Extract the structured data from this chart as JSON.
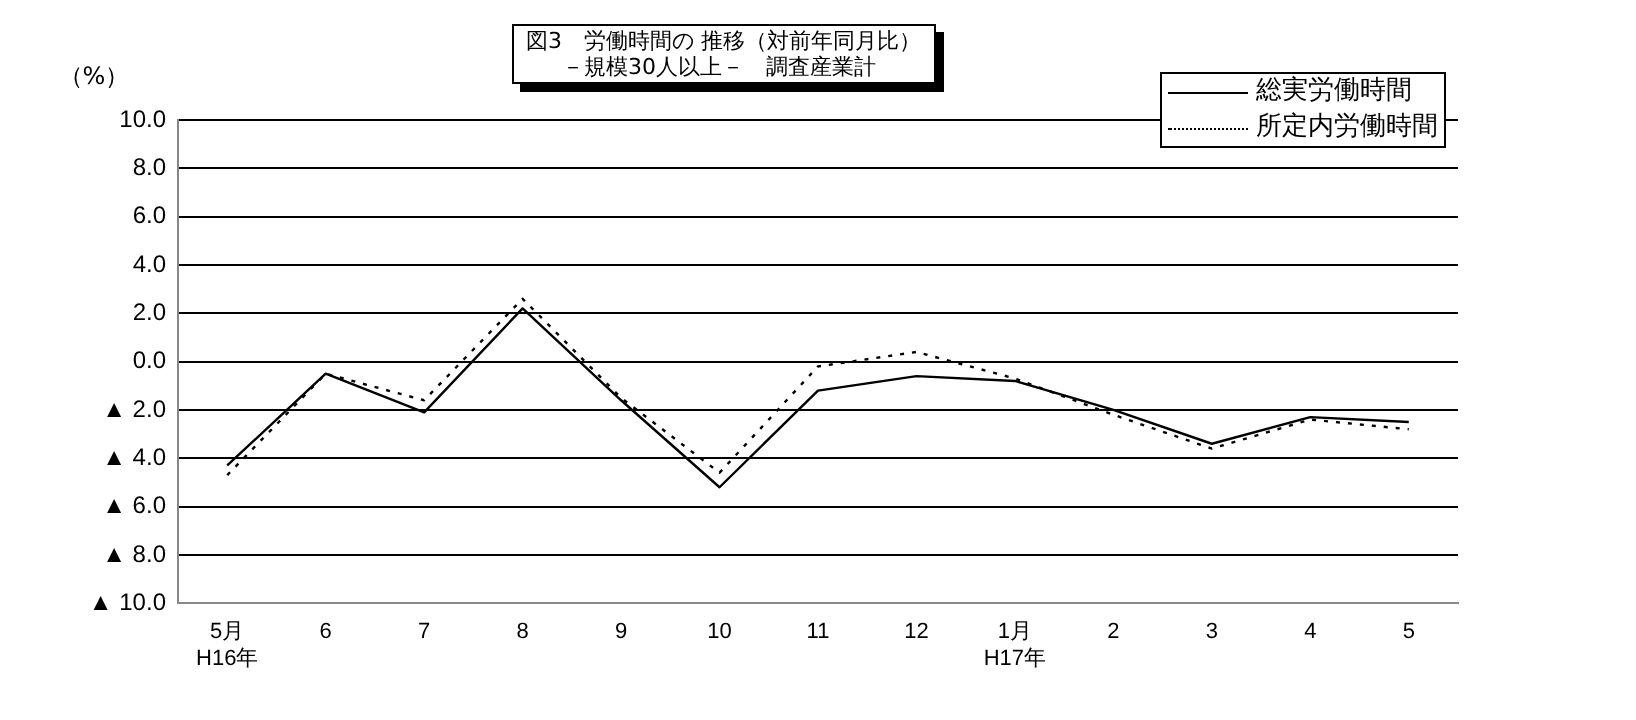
{
  "chart_data": {
    "type": "line",
    "title": "図3　労働時間の 推移（対前年同月比）",
    "subtitle": "－規模30人以上－　調査産業計",
    "ylabel": "（%）",
    "categories": [
      "5月\nH16年",
      "6",
      "7",
      "8",
      "9",
      "10",
      "11",
      "12",
      "1月\nH17年",
      "2",
      "3",
      "4",
      "5"
    ],
    "series": [
      {
        "name": "総実労働時間",
        "color": "#000000",
        "line_style": "solid",
        "values": [
          -4.3,
          -0.5,
          -2.1,
          2.2,
          -1.6,
          -5.2,
          -1.2,
          -0.6,
          -0.8,
          -2.0,
          -3.4,
          -2.3,
          -2.5
        ]
      },
      {
        "name": "所定内労働時間",
        "color": "#000000",
        "line_style": "dotted",
        "values": [
          -4.7,
          -0.5,
          -1.6,
          2.6,
          -1.5,
          -4.6,
          -0.2,
          0.4,
          -0.7,
          -2.2,
          -3.6,
          -2.4,
          -2.8
        ]
      }
    ],
    "ylim": [
      -10,
      10
    ],
    "yticks": [
      {
        "value": -10,
        "label": "▲ 10.0"
      },
      {
        "value": -8,
        "label": "▲ 8.0"
      },
      {
        "value": -6,
        "label": "▲ 6.0"
      },
      {
        "value": -4,
        "label": "▲ 4.0"
      },
      {
        "value": -2,
        "label": "▲ 2.0"
      },
      {
        "value": 0,
        "label": "0.0"
      },
      {
        "value": 2,
        "label": "2.0"
      },
      {
        "value": 4,
        "label": "4.0"
      },
      {
        "value": 6,
        "label": "6.0"
      },
      {
        "value": 8,
        "label": "8.0"
      },
      {
        "value": 10,
        "label": "10.0"
      }
    ],
    "grid": "y",
    "legend": "top right",
    "marker": "none"
  }
}
